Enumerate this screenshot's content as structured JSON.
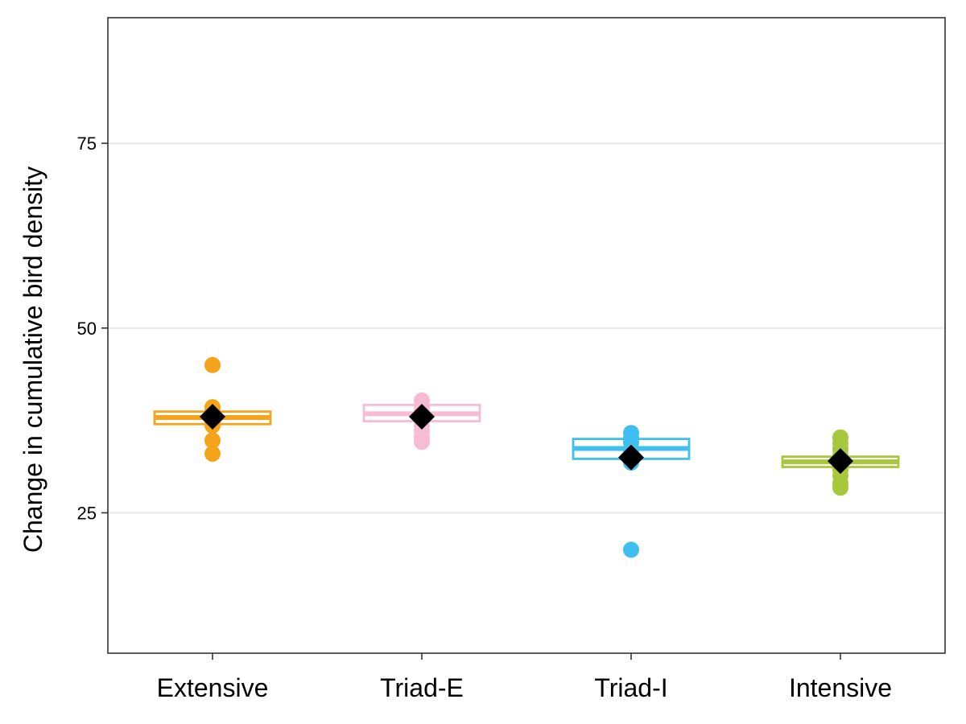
{
  "chart_data": {
    "type": "box",
    "title": "",
    "xlabel": "",
    "ylabel": "Change in cumulative bird density",
    "ylim": [
      6,
      92
    ],
    "yticks": [
      25,
      50,
      75
    ],
    "grid": "horizontal-major",
    "legend": "none",
    "categories": [
      "Extensive",
      "Triad-E",
      "Triad-I",
      "Intensive"
    ],
    "groups": [
      {
        "category": "Extensive",
        "color": "#F5A31A",
        "box": {
          "q1": 37.0,
          "median": 37.9,
          "q3": 38.7
        },
        "mean": 38.0,
        "points": [
          45.0,
          39.3,
          38.9,
          38.5,
          37.8,
          37.2,
          36.8,
          34.8,
          33.0
        ]
      },
      {
        "category": "Triad-E",
        "color": "#F7BCD4",
        "box": {
          "q1": 37.4,
          "median": 38.4,
          "q3": 39.6
        },
        "mean": 38.0,
        "points": [
          40.2,
          39.5,
          38.8,
          38.2,
          37.6,
          36.8,
          36.0,
          35.2,
          34.6
        ]
      },
      {
        "category": "Triad-I",
        "color": "#3EBFEF",
        "box": {
          "q1": 32.3,
          "median": 33.7,
          "q3": 35.0
        },
        "mean": 32.5,
        "points": [
          35.8,
          35.1,
          34.5,
          33.5,
          32.9,
          32.4,
          31.8,
          20.0
        ]
      },
      {
        "category": "Intensive",
        "color": "#A7C83C",
        "box": {
          "q1": 31.2,
          "median": 31.9,
          "q3": 32.6
        },
        "mean": 32.0,
        "points": [
          35.2,
          34.4,
          33.6,
          32.8,
          32.2,
          31.6,
          30.8,
          30.0,
          29.0,
          28.4
        ]
      }
    ]
  }
}
